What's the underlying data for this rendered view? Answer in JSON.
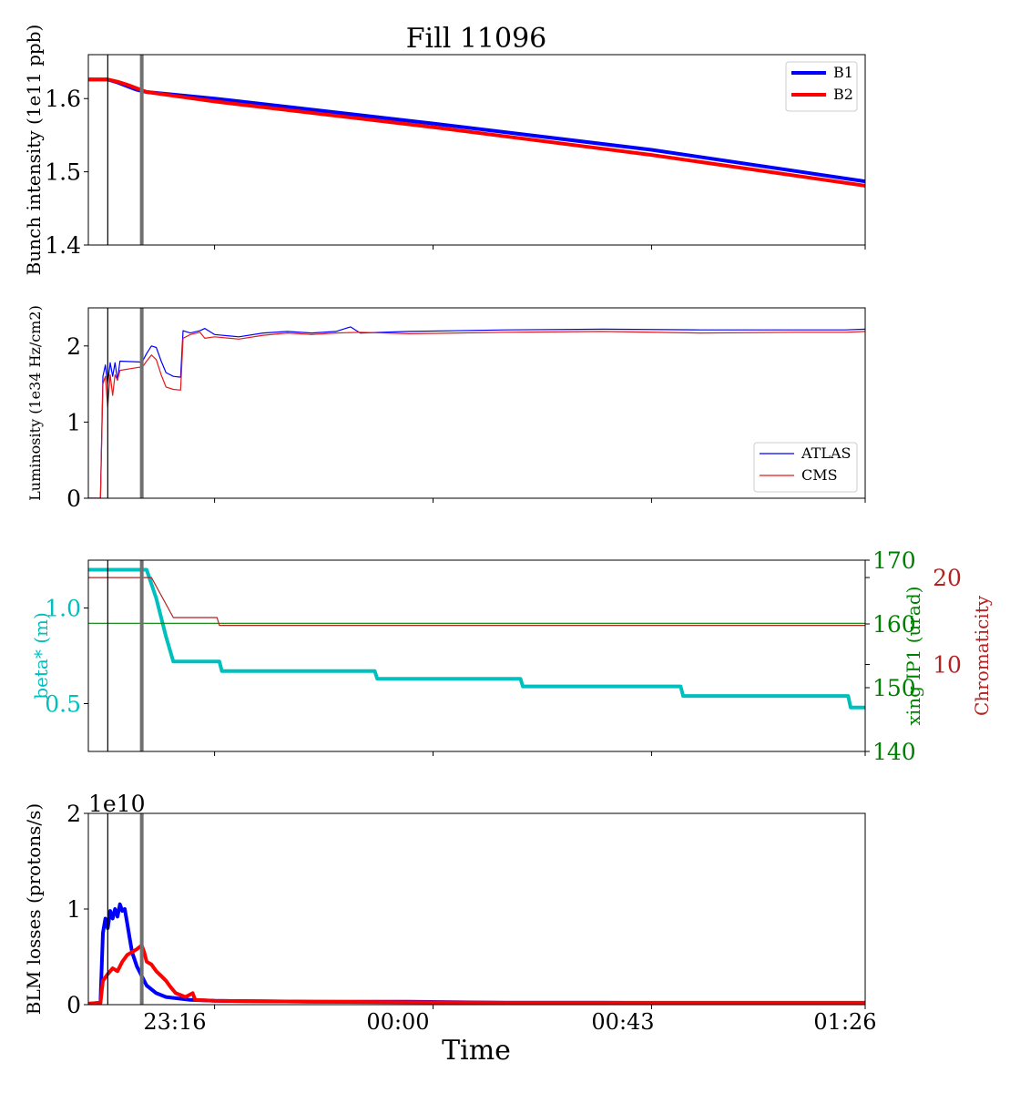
{
  "figure": {
    "title": "Fill 11096",
    "xlabel": "Time",
    "x_ticks": [
      "23:16",
      "00:00",
      "00:43",
      "01:26"
    ]
  },
  "colors": {
    "b1": "#0000ff",
    "b2": "#ff0000",
    "atlas": "#0000ff",
    "cms": "#e31a1c",
    "beta": "#00bfbf",
    "xing": "#008000",
    "chroma": "#b22222",
    "marker_thin": "#000000",
    "marker_thick": "#707070"
  },
  "chart_data": [
    {
      "type": "line",
      "ylabel": "Bunch intensity (1e11 ppb)",
      "y_ticks": [
        "1.4",
        "1.5",
        "1.6"
      ],
      "ylim": [
        1.4,
        1.66
      ],
      "xlim_minutes": [
        -26,
        134
      ],
      "legend": "top-right",
      "vertical_markers_minutes": [
        -22,
        -15
      ],
      "series": [
        {
          "name": "B1",
          "color_key": "b1",
          "width": 4,
          "points": [
            [
              -26,
              1.626
            ],
            [
              -22,
              1.626
            ],
            [
              -20,
              1.622
            ],
            [
              -18,
              1.617
            ],
            [
              -16,
              1.612
            ],
            [
              -14,
              1.609
            ],
            [
              0,
              1.6
            ],
            [
              45,
              1.566
            ],
            [
              90,
              1.53
            ],
            [
              134,
              1.487
            ]
          ]
        },
        {
          "name": "B2",
          "color_key": "b2",
          "width": 4,
          "points": [
            [
              -26,
              1.626
            ],
            [
              -22,
              1.626
            ],
            [
              -20,
              1.623
            ],
            [
              -18,
              1.619
            ],
            [
              -16,
              1.614
            ],
            [
              -14,
              1.609
            ],
            [
              0,
              1.596
            ],
            [
              45,
              1.561
            ],
            [
              90,
              1.523
            ],
            [
              134,
              1.481
            ]
          ]
        }
      ]
    },
    {
      "type": "line",
      "ylabel": "Luminosity (1e34 Hz/cm2)",
      "y_ticks": [
        "0",
        "1",
        "2"
      ],
      "ylim": [
        0,
        2.5
      ],
      "xlim_minutes": [
        -26,
        134
      ],
      "legend": "bottom-right",
      "vertical_markers_minutes": [
        -22,
        -15
      ],
      "series": [
        {
          "name": "ATLAS",
          "color_key": "atlas",
          "width": 1.2,
          "points": [
            [
              -26,
              0
            ],
            [
              -23.5,
              0
            ],
            [
              -23,
              1.6
            ],
            [
              -22.5,
              1.75
            ],
            [
              -22,
              1.5
            ],
            [
              -21.5,
              1.78
            ],
            [
              -21,
              1.6
            ],
            [
              -20.5,
              1.78
            ],
            [
              -20,
              1.55
            ],
            [
              -19.5,
              1.8
            ],
            [
              -15.5,
              1.79
            ],
            [
              -15,
              1.78
            ],
            [
              -14,
              1.9
            ],
            [
              -13,
              2.0
            ],
            [
              -12,
              1.98
            ],
            [
              -11,
              1.8
            ],
            [
              -10,
              1.65
            ],
            [
              -8.5,
              1.6
            ],
            [
              -7,
              1.59
            ],
            [
              -6.5,
              2.2
            ],
            [
              -5,
              2.17
            ],
            [
              -3,
              2.2
            ],
            [
              -2,
              2.23
            ],
            [
              0,
              2.15
            ],
            [
              5,
              2.12
            ],
            [
              10,
              2.17
            ],
            [
              15,
              2.19
            ],
            [
              20,
              2.17
            ],
            [
              25,
              2.19
            ],
            [
              28,
              2.25
            ],
            [
              30,
              2.17
            ],
            [
              40,
              2.19
            ],
            [
              60,
              2.21
            ],
            [
              80,
              2.22
            ],
            [
              100,
              2.21
            ],
            [
              120,
              2.21
            ],
            [
              130,
              2.21
            ],
            [
              134,
              2.22
            ]
          ]
        },
        {
          "name": "CMS",
          "color_key": "cms",
          "width": 1.2,
          "points": [
            [
              -26,
              0
            ],
            [
              -23.5,
              0
            ],
            [
              -23,
              1.5
            ],
            [
              -22.5,
              1.6
            ],
            [
              -22,
              1.2
            ],
            [
              -21.5,
              1.62
            ],
            [
              -21,
              1.35
            ],
            [
              -20.5,
              1.62
            ],
            [
              -20,
              1.55
            ],
            [
              -19.5,
              1.68
            ],
            [
              -15.5,
              1.72
            ],
            [
              -15,
              1.71
            ],
            [
              -14,
              1.8
            ],
            [
              -13,
              1.88
            ],
            [
              -12,
              1.82
            ],
            [
              -11,
              1.62
            ],
            [
              -10,
              1.46
            ],
            [
              -8.5,
              1.43
            ],
            [
              -7,
              1.42
            ],
            [
              -6.5,
              2.1
            ],
            [
              -5,
              2.15
            ],
            [
              -3,
              2.18
            ],
            [
              -2,
              2.1
            ],
            [
              0,
              2.12
            ],
            [
              5,
              2.09
            ],
            [
              10,
              2.14
            ],
            [
              15,
              2.17
            ],
            [
              20,
              2.15
            ],
            [
              25,
              2.17
            ],
            [
              30,
              2.18
            ],
            [
              40,
              2.16
            ],
            [
              60,
              2.18
            ],
            [
              80,
              2.19
            ],
            [
              100,
              2.17
            ],
            [
              120,
              2.18
            ],
            [
              130,
              2.18
            ],
            [
              134,
              2.19
            ]
          ]
        }
      ]
    },
    {
      "type": "line",
      "ylabel": "beta* (m)",
      "y_ticks": [
        "0.5",
        "1.0"
      ],
      "ylim": [
        0.25,
        1.25
      ],
      "y2label": "xing IP1 (urad)",
      "y2_ticks": [
        "140",
        "150",
        "160",
        "170"
      ],
      "y2lim": [
        140,
        170
      ],
      "y3label": "Chromaticity",
      "y3_ticks": [
        "10",
        "20"
      ],
      "y3lim": [
        0,
        22
      ],
      "xlim_minutes": [
        -26,
        134
      ],
      "vertical_markers_minutes": [
        -22,
        -15
      ],
      "series": [
        {
          "name": "beta*",
          "axis": "y",
          "color_key": "beta",
          "width": 4,
          "points": [
            [
              -26,
              1.2
            ],
            [
              -14,
              1.2
            ],
            [
              -12,
              1.05
            ],
            [
              -10,
              0.85
            ],
            [
              -8.5,
              0.72
            ],
            [
              1,
              0.72
            ],
            [
              1.5,
              0.67
            ],
            [
              33,
              0.67
            ],
            [
              33.5,
              0.63
            ],
            [
              63,
              0.63
            ],
            [
              63.5,
              0.59
            ],
            [
              96,
              0.59
            ],
            [
              96.5,
              0.54
            ],
            [
              130.5,
              0.54
            ],
            [
              131,
              0.48
            ],
            [
              134,
              0.48
            ]
          ]
        },
        {
          "name": "xing IP1",
          "axis": "y2",
          "color_key": "xing",
          "width": 1.2,
          "points": [
            [
              -26,
              160.1
            ],
            [
              134,
              160.1
            ]
          ]
        },
        {
          "name": "Chromaticity",
          "axis": "y3",
          "color_key": "chroma",
          "width": 1.2,
          "points": [
            [
              -26,
              20
            ],
            [
              -13,
              20
            ],
            [
              -8.5,
              15.4
            ],
            [
              0.5,
              15.4
            ],
            [
              1,
              14.5
            ],
            [
              134,
              14.5
            ]
          ]
        }
      ]
    },
    {
      "type": "line",
      "ylabel": "BLM losses (protons/s)",
      "y_offset_label": "1e10",
      "y_ticks": [
        "0",
        "1",
        "2"
      ],
      "ylim": [
        0,
        2
      ],
      "xlim_minutes": [
        -26,
        134
      ],
      "vertical_markers_minutes": [
        -22,
        -15
      ],
      "series": [
        {
          "name": "B1",
          "color_key": "b1",
          "width": 4,
          "points": [
            [
              -26,
              0.01
            ],
            [
              -23.5,
              0.02
            ],
            [
              -23,
              0.75
            ],
            [
              -22.5,
              0.9
            ],
            [
              -22,
              0.8
            ],
            [
              -21.5,
              0.98
            ],
            [
              -21,
              0.9
            ],
            [
              -20.5,
              1.0
            ],
            [
              -20,
              0.92
            ],
            [
              -19.5,
              1.05
            ],
            [
              -19,
              0.98
            ],
            [
              -18.5,
              1.0
            ],
            [
              -18,
              0.85
            ],
            [
              -17.5,
              0.7
            ],
            [
              -17,
              0.55
            ],
            [
              -16,
              0.4
            ],
            [
              -15,
              0.3
            ],
            [
              -14,
              0.2
            ],
            [
              -12,
              0.12
            ],
            [
              -10,
              0.08
            ],
            [
              -5,
              0.05
            ],
            [
              0,
              0.04
            ],
            [
              20,
              0.03
            ],
            [
              40,
              0.03
            ],
            [
              60,
              0.02
            ],
            [
              80,
              0.02
            ],
            [
              100,
              0.015
            ],
            [
              134,
              0.015
            ]
          ]
        },
        {
          "name": "B2",
          "color_key": "b2",
          "width": 4,
          "points": [
            [
              -26,
              0.01
            ],
            [
              -23.5,
              0.02
            ],
            [
              -23,
              0.25
            ],
            [
              -22,
              0.32
            ],
            [
              -21,
              0.38
            ],
            [
              -20,
              0.35
            ],
            [
              -19,
              0.45
            ],
            [
              -18,
              0.52
            ],
            [
              -17,
              0.55
            ],
            [
              -16,
              0.58
            ],
            [
              -15,
              0.62
            ],
            [
              -14.5,
              0.55
            ],
            [
              -14,
              0.45
            ],
            [
              -13,
              0.42
            ],
            [
              -12,
              0.35
            ],
            [
              -11,
              0.3
            ],
            [
              -10,
              0.25
            ],
            [
              -9,
              0.18
            ],
            [
              -8,
              0.12
            ],
            [
              -7,
              0.1
            ],
            [
              -6,
              0.08
            ],
            [
              -4.5,
              0.12
            ],
            [
              -4,
              0.05
            ],
            [
              0,
              0.04
            ],
            [
              20,
              0.03
            ],
            [
              40,
              0.025
            ],
            [
              60,
              0.02
            ],
            [
              80,
              0.02
            ],
            [
              100,
              0.02
            ],
            [
              134,
              0.02
            ]
          ]
        }
      ]
    }
  ]
}
